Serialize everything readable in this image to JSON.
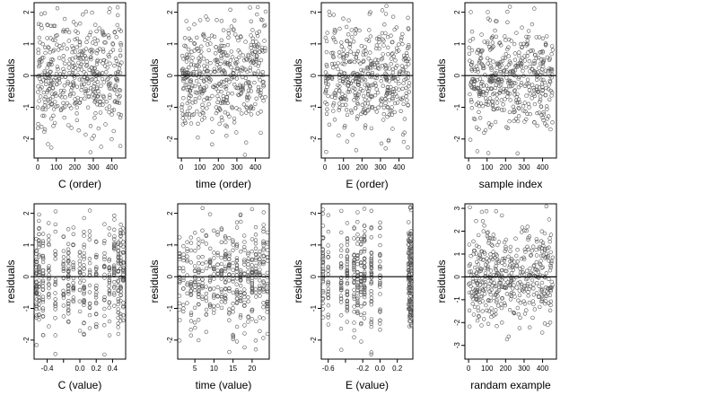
{
  "chart_data": [
    {
      "type": "scatter",
      "xlabel": "C (order)",
      "ylabel": "residuals",
      "xlim": [
        -20,
        475
      ],
      "ylim": [
        -2.6,
        2.3
      ],
      "xticks": [
        0,
        100,
        200,
        300,
        400
      ],
      "xtick_labels": [
        "0",
        "100",
        "200",
        "300",
        "400"
      ],
      "yticks": [
        -2,
        -1,
        0,
        1,
        2
      ],
      "ytick_labels": [
        "-2",
        "-1",
        "0",
        "1",
        "2"
      ],
      "hline": 0,
      "pattern": "index",
      "n": 456,
      "seed": 11
    },
    {
      "type": "scatter",
      "xlabel": "time (order)",
      "ylabel": "residuals",
      "xlim": [
        -20,
        475
      ],
      "ylim": [
        -2.6,
        2.3
      ],
      "xticks": [
        0,
        100,
        200,
        300,
        400
      ],
      "xtick_labels": [
        "0",
        "100",
        "200",
        "300",
        "400"
      ],
      "yticks": [
        -2,
        -1,
        0,
        1,
        2
      ],
      "ytick_labels": [
        "-2",
        "-1",
        "0",
        "1",
        "2"
      ],
      "hline": 0,
      "pattern": "index",
      "n": 456,
      "seed": 23
    },
    {
      "type": "scatter",
      "xlabel": "E (order)",
      "ylabel": "residuals",
      "xlim": [
        -20,
        475
      ],
      "ylim": [
        -2.6,
        2.3
      ],
      "xticks": [
        0,
        100,
        200,
        300,
        400
      ],
      "xtick_labels": [
        "0",
        "100",
        "200",
        "300",
        "400"
      ],
      "yticks": [
        -2,
        -1,
        0,
        1,
        2
      ],
      "ytick_labels": [
        "-2",
        "-1",
        "0",
        "1",
        "2"
      ],
      "hline": 0,
      "pattern": "index",
      "n": 456,
      "seed": 37
    },
    {
      "type": "scatter",
      "xlabel": "sample index",
      "ylabel": "residuals",
      "xlim": [
        -20,
        475
      ],
      "ylim": [
        -2.6,
        2.3
      ],
      "xticks": [
        0,
        100,
        200,
        300,
        400
      ],
      "xtick_labels": [
        "0",
        "100",
        "200",
        "300",
        "400"
      ],
      "yticks": [
        -2,
        -1,
        0,
        1,
        2
      ],
      "ytick_labels": [
        "-2",
        "-1",
        "0",
        "1",
        "2"
      ],
      "hline": 0,
      "pattern": "index",
      "n": 456,
      "seed": 41
    },
    {
      "type": "scatter",
      "xlabel": "C (value)",
      "ylabel": "residuals",
      "xlim": [
        -0.56,
        0.56
      ],
      "ylim": [
        -2.6,
        2.3
      ],
      "xticks": [
        -0.4,
        -0.2,
        0.0,
        0.2,
        0.4
      ],
      "xtick_labels": [
        "-0.4",
        "",
        "0.0",
        "0.2",
        "0.4"
      ],
      "yticks": [
        -2,
        -1,
        0,
        1,
        2
      ],
      "ytick_labels": [
        "-2",
        "-1",
        "0",
        "1",
        "2"
      ],
      "hline": 0,
      "pattern": "levels",
      "levels": [
        -0.53,
        -0.5,
        -0.45,
        -0.38,
        -0.3,
        -0.2,
        -0.14,
        -0.08,
        0.0,
        0.05,
        0.12,
        0.2,
        0.3,
        0.36,
        0.42,
        0.47,
        0.5,
        0.53
      ],
      "n": 456,
      "seed": 53
    },
    {
      "type": "scatter",
      "xlabel": "time (value)",
      "ylabel": "residuals",
      "xlim": [
        0.5,
        24.5
      ],
      "ylim": [
        -2.6,
        2.3
      ],
      "xticks": [
        5,
        10,
        15,
        20
      ],
      "xtick_labels": [
        "5",
        "10",
        "15",
        "20"
      ],
      "yticks": [
        -2,
        -1,
        0,
        1,
        2
      ],
      "ytick_labels": [
        "-2",
        "-1",
        "0",
        "1",
        "2"
      ],
      "hline": 0,
      "pattern": "levels",
      "levels": [
        1,
        2,
        3,
        4,
        5,
        6,
        7,
        8,
        9,
        10,
        11,
        12,
        13,
        14,
        15,
        16,
        17,
        18,
        19,
        20,
        21,
        22,
        23,
        24
      ],
      "n": 456,
      "seed": 67
    },
    {
      "type": "scatter",
      "xlabel": "E (value)",
      "ylabel": "residuals",
      "xlim": [
        -0.68,
        0.38
      ],
      "ylim": [
        -2.6,
        2.3
      ],
      "xticks": [
        -0.6,
        -0.4,
        -0.2,
        0.0,
        0.2
      ],
      "xtick_labels": [
        "-0.6",
        "",
        "-0.2",
        "0.0",
        "0.2"
      ],
      "yticks": [
        -2,
        -1,
        0,
        1,
        2
      ],
      "ytick_labels": [
        "-2",
        "-1",
        "0",
        "1",
        "2"
      ],
      "hline": 0,
      "pattern": "levels",
      "levels": [
        -0.66,
        -0.6,
        -0.45,
        -0.38,
        -0.3,
        -0.26,
        -0.22,
        -0.18,
        -0.1,
        0.0,
        0.33,
        0.34,
        0.35,
        0.36
      ],
      "n": 456,
      "seed": 79
    },
    {
      "type": "scatter",
      "xlabel": "randam example",
      "ylabel": "residuals",
      "xlim": [
        -20,
        475
      ],
      "ylim": [
        -3.6,
        3.2
      ],
      "xticks": [
        0,
        100,
        200,
        300,
        400
      ],
      "xtick_labels": [
        "0",
        "100",
        "200",
        "300",
        "400"
      ],
      "yticks": [
        -3,
        -2,
        -1,
        0,
        1,
        2,
        3
      ],
      "ytick_labels": [
        "-3",
        "-2",
        "-1",
        "0",
        "1",
        "2",
        "3"
      ],
      "hline": 0,
      "pattern": "random",
      "n": 456,
      "seed": 97
    }
  ],
  "colors": {
    "point": "#555555",
    "axis": "#000000",
    "background": "#ffffff"
  },
  "panels": [
    {
      "xlabel": "C (order)",
      "ylabel": "residuals"
    },
    {
      "xlabel": "time (order)",
      "ylabel": "residuals"
    },
    {
      "xlabel": "E (order)",
      "ylabel": "residuals"
    },
    {
      "xlabel": "sample index",
      "ylabel": "residuals"
    },
    {
      "xlabel": "C (value)",
      "ylabel": "residuals"
    },
    {
      "xlabel": "time (value)",
      "ylabel": "residuals"
    },
    {
      "xlabel": "E (value)",
      "ylabel": "residuals"
    },
    {
      "xlabel": "randam example",
      "ylabel": "residuals"
    }
  ]
}
